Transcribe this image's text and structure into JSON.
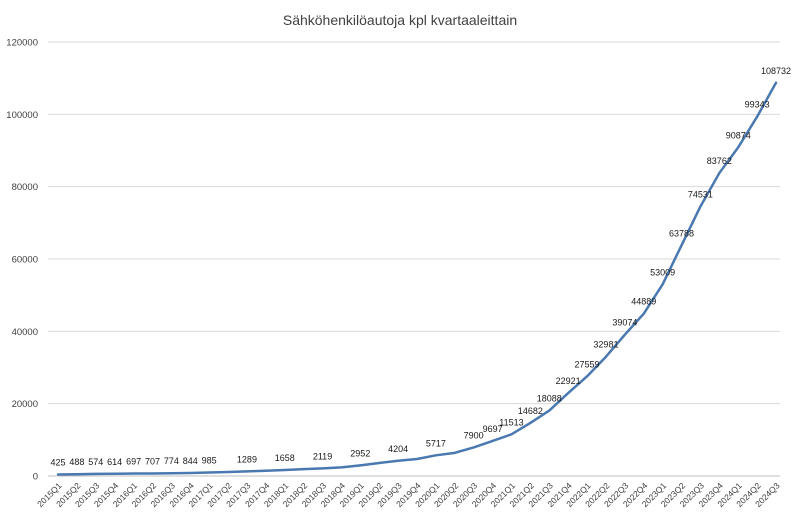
{
  "chart_data": {
    "type": "line",
    "title": "Sähköhenkilöautoja kpl kvartaaleittain",
    "xlabel": "",
    "ylabel": "",
    "ylim": [
      0,
      120000
    ],
    "yticks": [
      0,
      20000,
      40000,
      60000,
      80000,
      100000,
      120000
    ],
    "grid": true,
    "legend": "none",
    "color": "#4a78b0",
    "categories": [
      "2015Q1",
      "2015Q2",
      "2015Q3",
      "2015Q4",
      "2016Q1",
      "2016Q2",
      "2016Q3",
      "2016Q4",
      "2017Q1",
      "2017Q2",
      "2017Q3",
      "2017Q4",
      "2018Q1",
      "2018Q2",
      "2018Q3",
      "2018Q4",
      "2019Q1",
      "2019Q2",
      "2019Q3",
      "2019Q4",
      "2020Q1",
      "2020Q2",
      "2020Q3",
      "2020Q4",
      "2021Q1",
      "2021Q2",
      "2021Q3",
      "2021Q4",
      "2022Q1",
      "2022Q2",
      "2022Q3",
      "2022Q4",
      "2023Q1",
      "2023Q2",
      "2023Q3",
      "2023Q4",
      "2024Q1",
      "2024Q2",
      "2024Q3"
    ],
    "values": [
      425,
      488,
      574,
      614,
      697,
      707,
      774,
      844,
      985,
      1100,
      1289,
      1450,
      1658,
      1900,
      2119,
      2400,
      2952,
      3600,
      4204,
      4700,
      5717,
      6400,
      7900,
      9697,
      11513,
      14682,
      18088,
      22921,
      27559,
      32981,
      39074,
      44889,
      53009,
      63788,
      74531,
      83762,
      90874,
      99343,
      108732
    ],
    "labels": [
      "425",
      "488",
      "574",
      "614",
      "697",
      "707",
      "774",
      "844",
      "985",
      "",
      "1289",
      "",
      "1658",
      "",
      "2119",
      "",
      "2952",
      "",
      "4204",
      "",
      "5717",
      "",
      "7900",
      "9697",
      "11513",
      "14682",
      "18088",
      "22921",
      "27559",
      "32981",
      "39074",
      "44889",
      "53009",
      "63788",
      "74531",
      "83762",
      "90874",
      "99343",
      "108732"
    ]
  }
}
